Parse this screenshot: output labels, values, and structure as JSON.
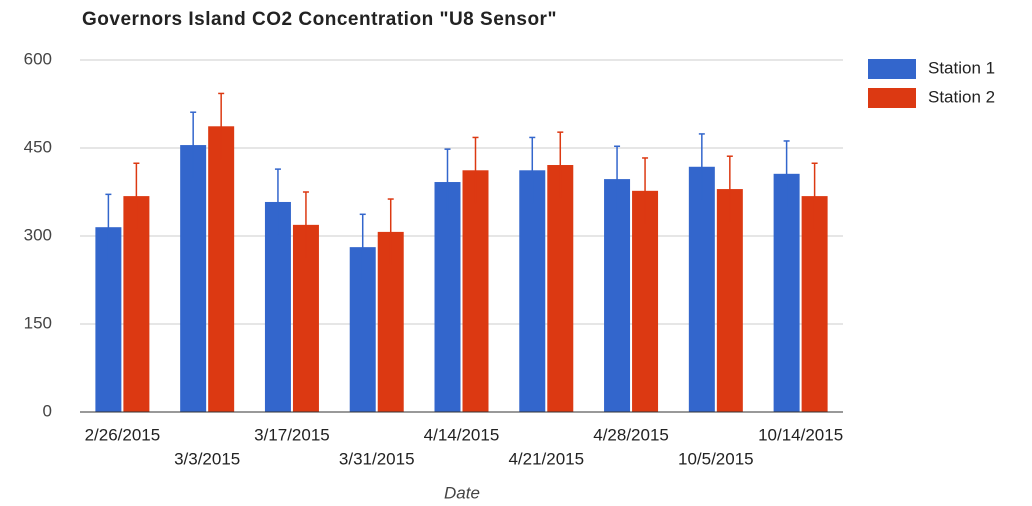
{
  "chart_data": {
    "type": "bar",
    "title": "Governors Island CO2 Concentration \"U8 Sensor\"",
    "x_label": "Date",
    "categories": [
      "2/26/2015",
      "3/3/2015",
      "3/17/2015",
      "3/31/2015",
      "4/14/2015",
      "4/21/2015",
      "4/28/2015",
      "10/5/2015",
      "10/14/2015"
    ],
    "series": [
      {
        "name": "Station 1",
        "color": "#3366cc",
        "values": [
          315,
          455,
          358,
          281,
          392,
          412,
          397,
          418,
          406
        ],
        "errors": [
          56,
          56,
          56,
          56,
          56,
          56,
          56,
          56,
          56
        ]
      },
      {
        "name": "Station 2",
        "color": "#dc3912",
        "values": [
          368,
          487,
          319,
          307,
          412,
          421,
          377,
          380,
          368
        ],
        "errors": [
          56,
          56,
          56,
          56,
          56,
          56,
          56,
          56,
          56
        ]
      }
    ],
    "ylim": [
      0,
      600
    ],
    "yticks": [
      0,
      150,
      300,
      450,
      600
    ],
    "grid": true,
    "legend": "right"
  }
}
